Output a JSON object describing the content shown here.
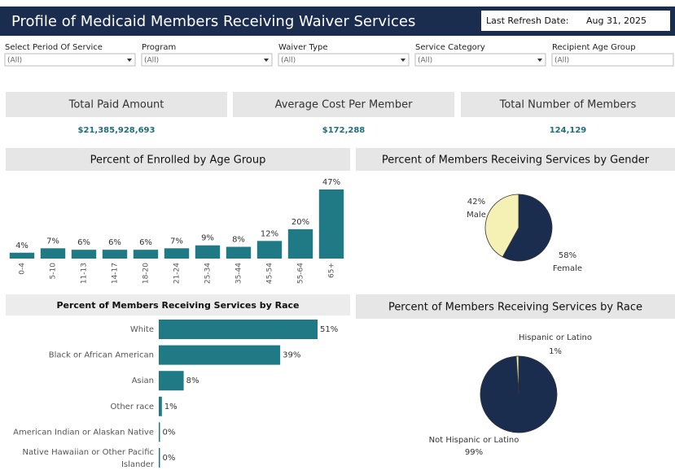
{
  "header": {
    "title": "Profile of Medicaid Members Receiving Waiver Services",
    "refresh_label": "Last Refresh Date:",
    "refresh_date": "Aug 31, 2025"
  },
  "filters": [
    {
      "label": "Select Period Of Service",
      "value": "(All)"
    },
    {
      "label": "Program",
      "value": "(All)"
    },
    {
      "label": "Waiver Type",
      "value": "(All)"
    },
    {
      "label": "Service Category",
      "value": "(All)"
    },
    {
      "label": "Recipient Age Group",
      "value": "(All)"
    }
  ],
  "kpis": [
    {
      "label": "Total Paid Amount",
      "value": "$21,385,928,693"
    },
    {
      "label": "Average Cost Per Member",
      "value": "$172,288"
    },
    {
      "label": "Total Number of Members",
      "value": "124,129"
    }
  ],
  "chart_data": [
    {
      "type": "bar",
      "title": "Percent of Enrolled by Age Group",
      "categories": [
        "0-4",
        "5-10",
        "11-13",
        "14-17",
        "18-20",
        "21-24",
        "25-34",
        "35-44",
        "45-54",
        "55-64",
        "65+"
      ],
      "values": [
        4,
        7,
        6,
        6,
        6,
        7,
        9,
        8,
        12,
        20,
        47
      ],
      "value_labels": [
        "4%",
        "7%",
        "6%",
        "6%",
        "6%",
        "7%",
        "9%",
        "8%",
        "12%",
        "20%",
        "47%"
      ],
      "color": "#1f7a85"
    },
    {
      "type": "pie",
      "title": "Percent of Members Receiving Services by Gender",
      "categories": [
        "Female",
        "Male"
      ],
      "values": [
        58,
        42
      ],
      "value_labels": [
        "58%",
        "42%"
      ],
      "colors": [
        "#1b2d4f",
        "#f5f0b4"
      ]
    },
    {
      "type": "hbar",
      "title": "Percent of Members Receiving Services by Race",
      "categories": [
        "White",
        "Black or African American",
        "Asian",
        "Other race",
        "American Indian or Alaskan Native",
        "Native Hawaiian or Other Pacific Islander"
      ],
      "values": [
        51,
        39,
        8,
        1,
        0,
        0
      ],
      "value_labels": [
        "51%",
        "39%",
        "8%",
        "1%",
        "0%",
        "0%"
      ],
      "color": "#1f7a85"
    },
    {
      "type": "pie",
      "title": "Percent of Members Receiving Services by Race",
      "categories": [
        "Not Hispanic or Latino",
        "Hispanic or Latino"
      ],
      "values": [
        99,
        1
      ],
      "value_labels": [
        "99%",
        "1%"
      ],
      "colors": [
        "#1b2d4f",
        "#f5f0b4"
      ]
    }
  ]
}
